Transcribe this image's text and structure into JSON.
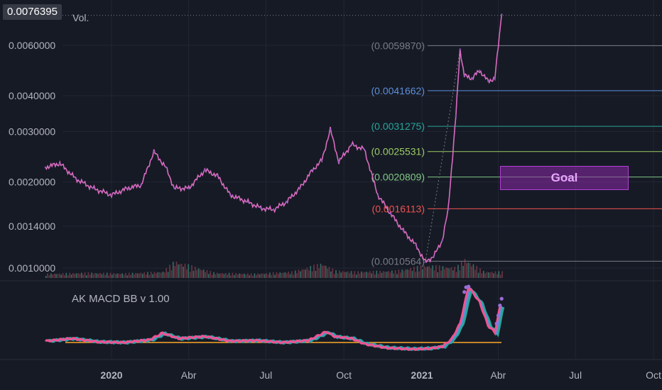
{
  "chart_data": {
    "type": "line",
    "title": "",
    "price_badge": "0.0076395",
    "volume_label": "Vol.",
    "indicator_label": "AK MACD BB v 1.00",
    "scale": "log",
    "y_ticks": [
      "0.0060000",
      "0.0040000",
      "0.0030000",
      "0.0020000",
      "0.0014000",
      "0.0010000"
    ],
    "x_ticks": [
      {
        "label": "2020",
        "bold": true
      },
      {
        "label": "Abr",
        "bold": false
      },
      {
        "label": "Jul",
        "bold": false
      },
      {
        "label": "Oct",
        "bold": false
      },
      {
        "label": "2021",
        "bold": true
      },
      {
        "label": "Abr",
        "bold": false
      },
      {
        "label": "Jul",
        "bold": false
      },
      {
        "label": "Oct",
        "bold": false
      }
    ],
    "fib_levels": [
      {
        "label": "(0.0059870)",
        "value": 0.005987,
        "color": "#787b86"
      },
      {
        "label": "(0.0041662)",
        "value": 0.0041662,
        "color": "#5b8fd9"
      },
      {
        "label": "(0.0031275)",
        "value": 0.0031275,
        "color": "#26a69a"
      },
      {
        "label": "(0.0025531)",
        "value": 0.0025531,
        "color": "#9ccc65"
      },
      {
        "label": "(0.0020809)",
        "value": 0.0020809,
        "color": "#81c784"
      },
      {
        "label": "(0.0016113)",
        "value": 0.0016113,
        "color": "#ef5350"
      },
      {
        "label": "(0.0010564)",
        "value": 0.0010564,
        "color": "#787b86"
      }
    ],
    "series": [
      {
        "name": "",
        "color": "#d96bc0",
        "dates": [
          "2019-10-15",
          "2019-11-01",
          "2019-11-20",
          "2019-12-10",
          "2020-01-01",
          "2020-01-20",
          "2020-02-05",
          "2020-02-20",
          "2020-03-05",
          "2020-03-15",
          "2020-04-01",
          "2020-04-20",
          "2020-05-05",
          "2020-05-20",
          "2020-06-10",
          "2020-06-25",
          "2020-07-10",
          "2020-07-25",
          "2020-08-10",
          "2020-08-25",
          "2020-09-05",
          "2020-09-15",
          "2020-09-25",
          "2020-10-10",
          "2020-10-25",
          "2020-11-10",
          "2020-11-25",
          "2020-12-10",
          "2020-12-25",
          "2021-01-05",
          "2021-01-15",
          "2021-01-25",
          "2021-02-01",
          "2021-02-10",
          "2021-02-15",
          "2021-02-20",
          "2021-03-01",
          "2021-03-10",
          "2021-03-20",
          "2021-03-28",
          "2021-04-05"
        ],
        "values": [
          0.00225,
          0.00232,
          0.00205,
          0.0019,
          0.0018,
          0.0019,
          0.00195,
          0.00255,
          0.00225,
          0.0019,
          0.0019,
          0.0022,
          0.0021,
          0.0018,
          0.0017,
          0.00162,
          0.0016,
          0.0017,
          0.0019,
          0.0022,
          0.00238,
          0.00305,
          0.00235,
          0.0027,
          0.0026,
          0.0018,
          0.00155,
          0.00135,
          0.0012,
          0.00105,
          0.0011,
          0.00125,
          0.0016,
          0.0034,
          0.0058,
          0.0047,
          0.0046,
          0.0049,
          0.0045,
          0.0046,
          0.0077
        ]
      }
    ],
    "volume": {
      "dates": [
        "2019-10-15",
        "2019-12-01",
        "2020-01-15",
        "2020-03-01",
        "2020-03-15",
        "2020-05-01",
        "2020-06-15",
        "2020-08-01",
        "2020-09-05",
        "2020-09-20",
        "2020-10-15",
        "2020-12-01",
        "2021-01-05",
        "2021-02-10",
        "2021-02-20",
        "2021-03-15",
        "2021-04-05"
      ],
      "values": [
        0.2,
        0.25,
        0.22,
        0.3,
        0.8,
        0.25,
        0.2,
        0.3,
        0.7,
        0.35,
        0.3,
        0.35,
        0.6,
        0.5,
        0.9,
        0.3,
        0.3
      ]
    },
    "macd": {
      "zero_line_color": "#ffa726",
      "dates": [
        "2019-10-15",
        "2019-11-15",
        "2019-12-15",
        "2020-01-15",
        "2020-02-15",
        "2020-03-01",
        "2020-03-20",
        "2020-04-20",
        "2020-05-20",
        "2020-06-20",
        "2020-07-20",
        "2020-08-20",
        "2020-09-10",
        "2020-09-20",
        "2020-10-10",
        "2020-10-25",
        "2020-11-20",
        "2020-12-20",
        "2021-01-10",
        "2021-01-25",
        "2021-02-05",
        "2021-02-15",
        "2021-02-25",
        "2021-03-10",
        "2021-03-20",
        "2021-03-28",
        "2021-04-05"
      ],
      "values": [
        0.2,
        0.6,
        0.1,
        0.0,
        0.4,
        1.4,
        0.6,
        0.9,
        0.2,
        0.3,
        0.0,
        0.3,
        1.6,
        0.9,
        0.6,
        -0.2,
        -0.8,
        -1.0,
        -0.9,
        -0.6,
        0.5,
        2.8,
        8.3,
        6.0,
        2.5,
        1.5,
        6.5
      ]
    }
  }
}
